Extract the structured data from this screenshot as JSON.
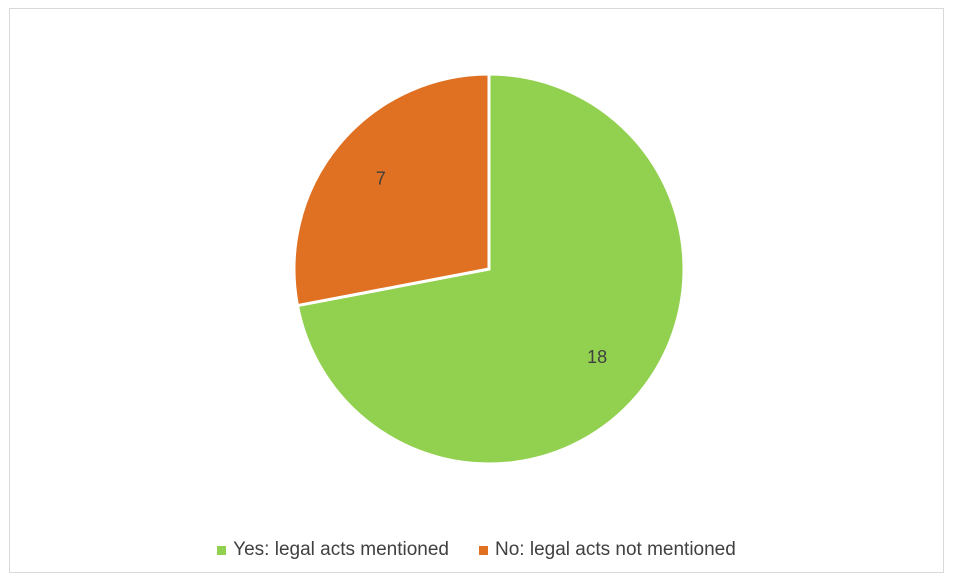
{
  "chart_data": {
    "type": "pie",
    "title": "",
    "categories": [
      "Yes: legal acts mentioned",
      "No: legal acts not mentioned"
    ],
    "values": [
      18,
      7
    ],
    "colors": [
      "#92d050",
      "#e07122"
    ],
    "data_labels": [
      "18",
      "7"
    ],
    "legend_position": "bottom",
    "start_angle_deg": 0,
    "direction": "clockwise"
  }
}
